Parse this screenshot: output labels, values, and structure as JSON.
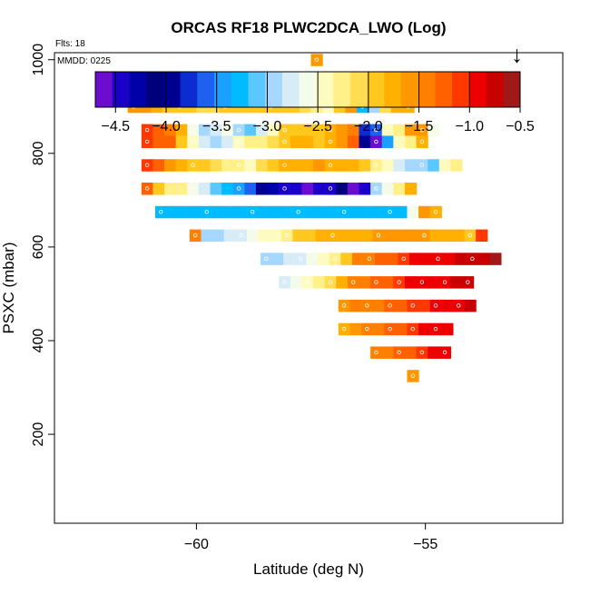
{
  "chart_data": {
    "type": "heatmap",
    "title": "ORCAS RF18 PLWC2DCA_LWO (Log)",
    "subtitle": "Flts: 18",
    "annotation": "MMDD: 0225",
    "xlabel": "Latitude (deg N)",
    "ylabel": "PSXC (mbar)",
    "x_ticks": [
      -60,
      -55
    ],
    "y_ticks": [
      200,
      400,
      600,
      800,
      1000
    ],
    "xlim": [
      -63.1,
      -52.0
    ],
    "ylim": [
      1015,
      10
    ],
    "y_reversed": true,
    "colorbar": {
      "range": [
        -4.7,
        -0.5
      ],
      "ticks": [
        -4.5,
        -4.0,
        -3.5,
        -3.0,
        -2.5,
        -2.0,
        -1.5,
        -1.0,
        -0.5
      ],
      "colors": [
        "#6a0dcf",
        "#1b00c8",
        "#0000a8",
        "#00007a",
        "#000090",
        "#0c2cd0",
        "#1e60f0",
        "#1aa0ff",
        "#00bbff",
        "#5ac8ff",
        "#a6d8ff",
        "#d8ecf8",
        "#f4fbe8",
        "#fdfbc0",
        "#fff08a",
        "#ffdc50",
        "#ffc81e",
        "#ffb000",
        "#ff9800",
        "#ff8000",
        "#ff6000",
        "#ff3800",
        "#ee0000",
        "#c80000",
        "#a01818"
      ]
    },
    "marker": {
      "label": "↓",
      "x": -53.0,
      "y": 1000
    },
    "cell_width_deg": 0.25,
    "cell_height_mbar": 25,
    "rows": [
      {
        "p": 1000,
        "x0": -57.5,
        "values": [
          -1.6
        ]
      },
      {
        "p": 950,
        "x0": -61.3,
        "values": [
          -2.35,
          -2.2,
          -1.6,
          -1.6,
          -1.7,
          -1.6,
          -1.6,
          -1.7,
          -1.8,
          -1.8,
          -1.7,
          -1.6,
          -1.8,
          -1.9,
          -2.0,
          -2.1,
          -2.3,
          -2.4,
          -2.5,
          -1.7,
          -1.7,
          -1.9
        ]
      },
      {
        "p": 900,
        "x0": -61.5,
        "values": [
          -1.6,
          -1.6,
          -1.7,
          -2.0,
          -2.0,
          -2.0,
          -2.05,
          -2.1,
          -2.0,
          -2.0,
          -1.9,
          -1.9,
          -1.9,
          -2.0,
          -2.0,
          -2.1,
          -2.3,
          -2.4,
          -1.9,
          -1.6,
          -3.3,
          -3.0,
          -2.1,
          -1.7,
          -1.8
        ]
      },
      {
        "p": 850,
        "x0": -61.2,
        "values": [
          -1.1,
          -1.3,
          -1.4,
          -1.7,
          -2.6,
          -2.9,
          -2.8,
          -2.6,
          -2.9,
          -3.1,
          -2.7,
          -2.4,
          -2.0,
          -1.9,
          -1.9,
          -2.0,
          -1.8,
          -1.6,
          -1.4,
          -3.7,
          -3.6,
          -2.5,
          -2.2,
          -1.6,
          -1.6,
          -2.6
        ]
      },
      {
        "p": 825,
        "x0": -61.2,
        "values": [
          -1.1,
          -1.2,
          -1.3,
          -2.0,
          -2.4,
          -2.7,
          -3.0,
          -2.8,
          -2.4,
          -2.3,
          -2.2,
          -2.1,
          -1.9,
          -1.8,
          -1.8,
          -1.9,
          -1.8,
          -1.6,
          -1.3,
          -3.9,
          -4.6,
          -3.5,
          -2.4,
          -2.2,
          -1.8
        ]
      },
      {
        "p": 775,
        "x0": -61.2,
        "values": [
          -1.1,
          -1.3,
          -1.6,
          -1.8,
          -1.9,
          -2.0,
          -2.1,
          -2.2,
          -2.3,
          -2.4,
          -2.1,
          -1.9,
          -1.8,
          -1.8,
          -1.7,
          -1.6,
          -1.7,
          -1.8,
          -1.8,
          -2.0,
          -2.3,
          -2.5,
          -2.7,
          -2.9,
          -3.0,
          -3.1,
          -2.4,
          -2.3
        ]
      },
      {
        "p": 725,
        "x0": -61.2,
        "values": [
          -1.2,
          -1.9,
          -2.3,
          -2.2,
          -2.6,
          -2.8,
          -3.1,
          -3.2,
          -3.4,
          -3.6,
          -4.0,
          -4.3,
          -4.4,
          -4.5,
          -4.6,
          -4.5,
          -4.4,
          -4.1,
          -4.6,
          -4.4,
          -3.0,
          -2.6,
          -2.3,
          -1.7
        ]
      },
      {
        "p": 675,
        "x0": -60.9,
        "values": [
          -3.2,
          -3.2,
          -3.2,
          -3.2,
          -3.2,
          -3.2,
          -3.2,
          -3.2,
          -3.2,
          -3.2,
          -3.2,
          -3.2,
          -3.2,
          -3.2,
          -3.2,
          -3.2,
          -3.2,
          -3.2,
          -3.2,
          -3.2,
          -3.2,
          -3.2,
          -2.6,
          -1.6,
          -1.7
        ]
      },
      {
        "p": 625,
        "x0": -60.15,
        "values": [
          -1.5,
          -3.0,
          -2.9,
          -2.8,
          -2.7,
          -2.6,
          -2.5,
          -2.4,
          -2.3,
          -2.0,
          -1.9,
          -1.8,
          -1.8,
          -1.8,
          -1.8,
          -1.7,
          -1.6,
          -1.6,
          -1.6,
          -1.6,
          -1.6,
          -1.7,
          -1.7,
          -1.8,
          -2.0,
          -1.1
        ]
      },
      {
        "p": 575,
        "x0": -58.6,
        "values": [
          -3.0,
          -2.9,
          -2.8,
          -2.7,
          -2.6,
          -2.5,
          -2.3,
          -2.0,
          -1.5,
          -1.4,
          -1.3,
          -1.2,
          -1.1,
          -1.0,
          -1.0,
          -0.9,
          -0.9,
          -0.8,
          -0.8,
          -0.7,
          -0.6
        ]
      },
      {
        "p": 525,
        "x0": -58.2,
        "values": [
          -2.7,
          -2.6,
          -2.5,
          -2.3,
          -2.1,
          -1.8,
          -1.5,
          -1.4,
          -1.3,
          -1.2,
          -1.1,
          -1.0,
          -1.0,
          -0.9,
          -0.9,
          -0.8,
          -0.7
        ]
      },
      {
        "p": 475,
        "x0": -56.9,
        "values": [
          -1.6,
          -1.5,
          -1.5,
          -1.4,
          -1.3,
          -1.2,
          -1.1,
          -1.1,
          -1.0,
          -0.9,
          -0.9,
          -0.8
        ]
      },
      {
        "p": 425,
        "x0": -56.9,
        "values": [
          -1.7,
          -1.6,
          -1.5,
          -1.4,
          -1.3,
          -1.2,
          -1.1,
          -1.0,
          -1.0,
          -0.9
        ]
      },
      {
        "p": 375,
        "x0": -56.2,
        "values": [
          -1.5,
          -1.4,
          -1.3,
          -1.2,
          -1.1,
          -1.0,
          -1.0
        ]
      },
      {
        "p": 325,
        "x0": -55.4,
        "values": [
          -1.6
        ]
      }
    ]
  }
}
